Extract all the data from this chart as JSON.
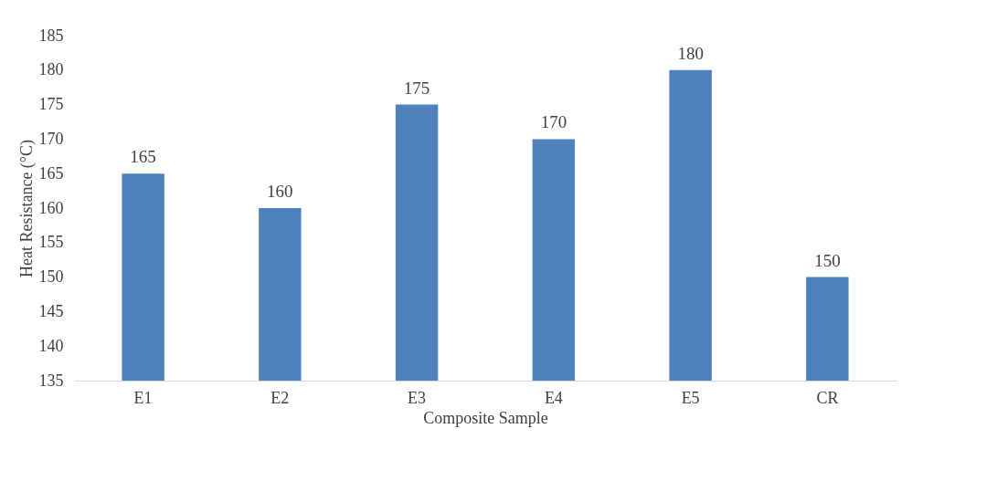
{
  "chart_data": {
    "type": "bar",
    "xlabel": "Composite Sample",
    "ylabel": "Heat Resistance (°C)",
    "categories": [
      "E1",
      "E2",
      "E3",
      "E4",
      "E5",
      "CR"
    ],
    "values": [
      165,
      160,
      175,
      170,
      180,
      150
    ],
    "color": "#4f81bd",
    "ylim": [
      135,
      185
    ],
    "yticks": [
      135,
      140,
      145,
      150,
      155,
      160,
      165,
      170,
      175,
      180,
      185
    ],
    "grid": false,
    "data_labels": true
  }
}
